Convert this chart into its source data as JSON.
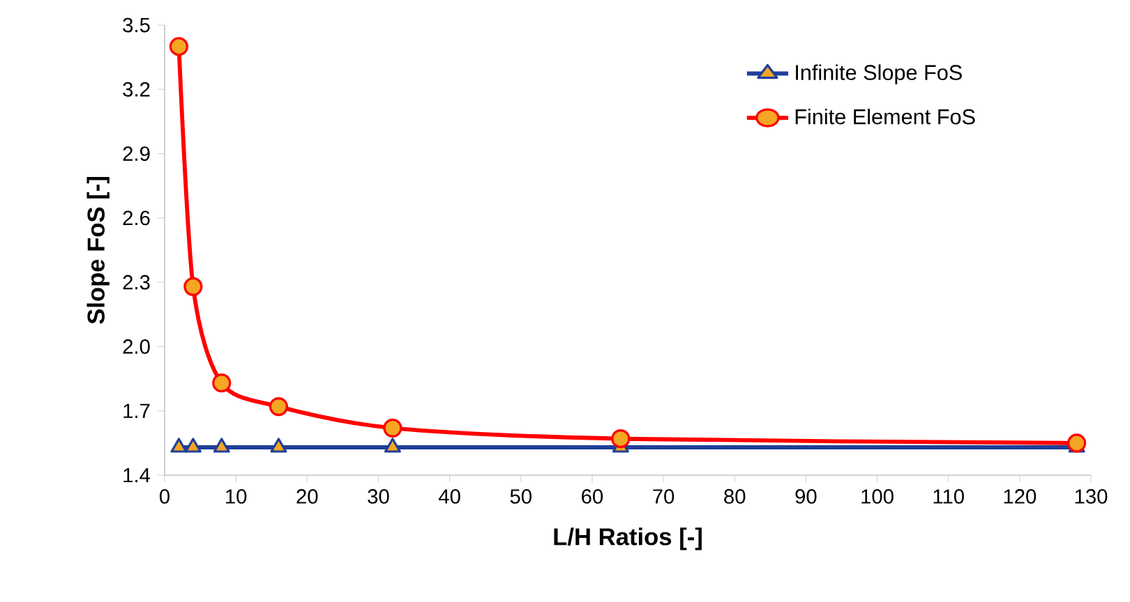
{
  "chart_data": {
    "type": "line",
    "xlabel": "L/H Ratios [-]",
    "ylabel": "Slope FoS [-]",
    "xlim": [
      0,
      130
    ],
    "xticks": [
      0,
      10,
      20,
      30,
      40,
      50,
      60,
      70,
      80,
      90,
      100,
      110,
      120,
      130
    ],
    "ylim": [
      1.4,
      3.5
    ],
    "yticks": [
      1.4,
      1.7,
      {
        "value": 2.0,
        "label": "2.0"
      },
      2.3,
      2.6,
      2.9,
      3.2,
      3.5
    ],
    "legend": "top right",
    "grid": false,
    "line_style": "solid",
    "series": [
      {
        "name": "Infinite Slope FoS",
        "color": "#1f3f99",
        "marker": "triangle",
        "x": [
          2,
          4,
          8,
          16,
          32,
          64,
          128
        ],
        "values": [
          1.53,
          1.53,
          1.53,
          1.53,
          1.53,
          1.53,
          1.53
        ]
      },
      {
        "name": "Finite Element FoS",
        "color": "#ff0000",
        "marker": "circle",
        "x": [
          2,
          4,
          8,
          16,
          32,
          64,
          128
        ],
        "values": [
          3.4,
          2.28,
          1.83,
          1.72,
          1.62,
          1.57,
          1.55
        ]
      }
    ]
  }
}
